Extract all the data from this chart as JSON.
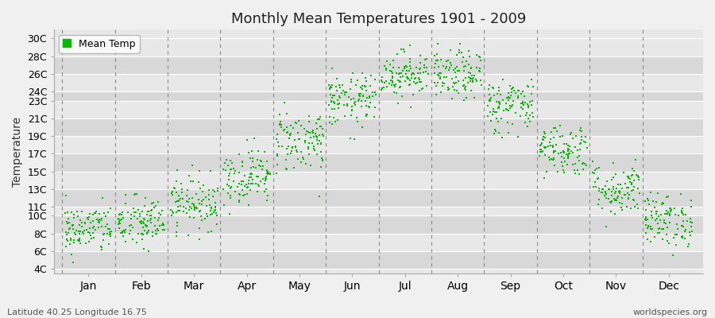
{
  "title": "Monthly Mean Temperatures 1901 - 2009",
  "ylabel": "Temperature",
  "xlabel_labels": [
    "Jan",
    "Feb",
    "Mar",
    "Apr",
    "May",
    "Jun",
    "Jul",
    "Aug",
    "Sep",
    "Oct",
    "Nov",
    "Dec"
  ],
  "footnote_left": "Latitude 40.25 Longitude 16.75",
  "footnote_right": "worldspecies.org",
  "legend_label": "Mean Temp",
  "dot_color": "#00bb00",
  "bg_color": "#f0f0f0",
  "plot_bg_color": "#e8e8e8",
  "ytick_labels": [
    "4C",
    "6C",
    "8C",
    "10C",
    "11C",
    "13C",
    "15C",
    "17C",
    "19C",
    "21C",
    "23C",
    "24C",
    "26C",
    "28C",
    "30C"
  ],
  "ytick_values": [
    4,
    6,
    8,
    10,
    11,
    13,
    15,
    17,
    19,
    21,
    23,
    24,
    26,
    28,
    30
  ],
  "ylim": [
    3.5,
    31
  ],
  "monthly_means": [
    8.5,
    9.2,
    11.5,
    14.5,
    18.5,
    23.0,
    26.0,
    25.8,
    22.5,
    17.5,
    13.0,
    9.5
  ],
  "monthly_stds": [
    1.4,
    1.5,
    1.5,
    1.6,
    1.8,
    1.5,
    1.3,
    1.4,
    1.6,
    1.5,
    1.5,
    1.5
  ],
  "n_years": 109,
  "seed": 42,
  "dot_size": 3,
  "vline_color": "#888888",
  "grid_color": "#ffffff",
  "spine_color": "#aaaaaa"
}
